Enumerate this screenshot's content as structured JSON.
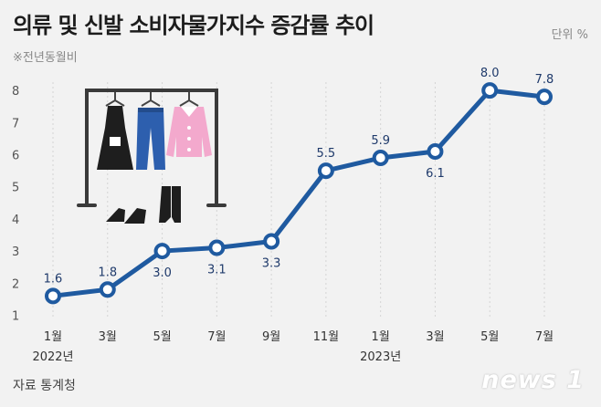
{
  "title": "의류 및 신발 소비자물가지수 증감률 추이",
  "unit": "단위 %",
  "subtitle": "※전년동월비",
  "source": "자료  통계청",
  "logo": "news 1",
  "colors": {
    "line": "#1f5aa0",
    "marker_fill": "#ffffff",
    "data_label": "#1f3a6b",
    "gridline": "#d4d4d4",
    "background": "#f2f2f2"
  },
  "illustration": "clothing-rack-icon",
  "chart_data": {
    "type": "line",
    "title": "의류 및 신발 소비자물가지수 증감률 추이",
    "subtitle": "※전년동월비",
    "unit": "단위 %",
    "categories": [
      "1월",
      "3월",
      "5월",
      "7월",
      "9월",
      "11월",
      "1월",
      "3월",
      "5월",
      "7월"
    ],
    "year_labels": [
      {
        "category_index": 0,
        "label": "2022년"
      },
      {
        "category_index": 6,
        "label": "2023년"
      }
    ],
    "values": [
      1.6,
      1.8,
      3.0,
      3.1,
      3.3,
      5.5,
      5.9,
      6.1,
      8.0,
      7.8
    ],
    "label_position": [
      "above",
      "above",
      "below",
      "below",
      "below",
      "above",
      "above",
      "below",
      "above",
      "above"
    ],
    "yticks": [
      1,
      2,
      3,
      4,
      5,
      6,
      7,
      8
    ],
    "ylim": [
      0.7,
      8.6
    ],
    "grid": "vertical-dotted"
  }
}
